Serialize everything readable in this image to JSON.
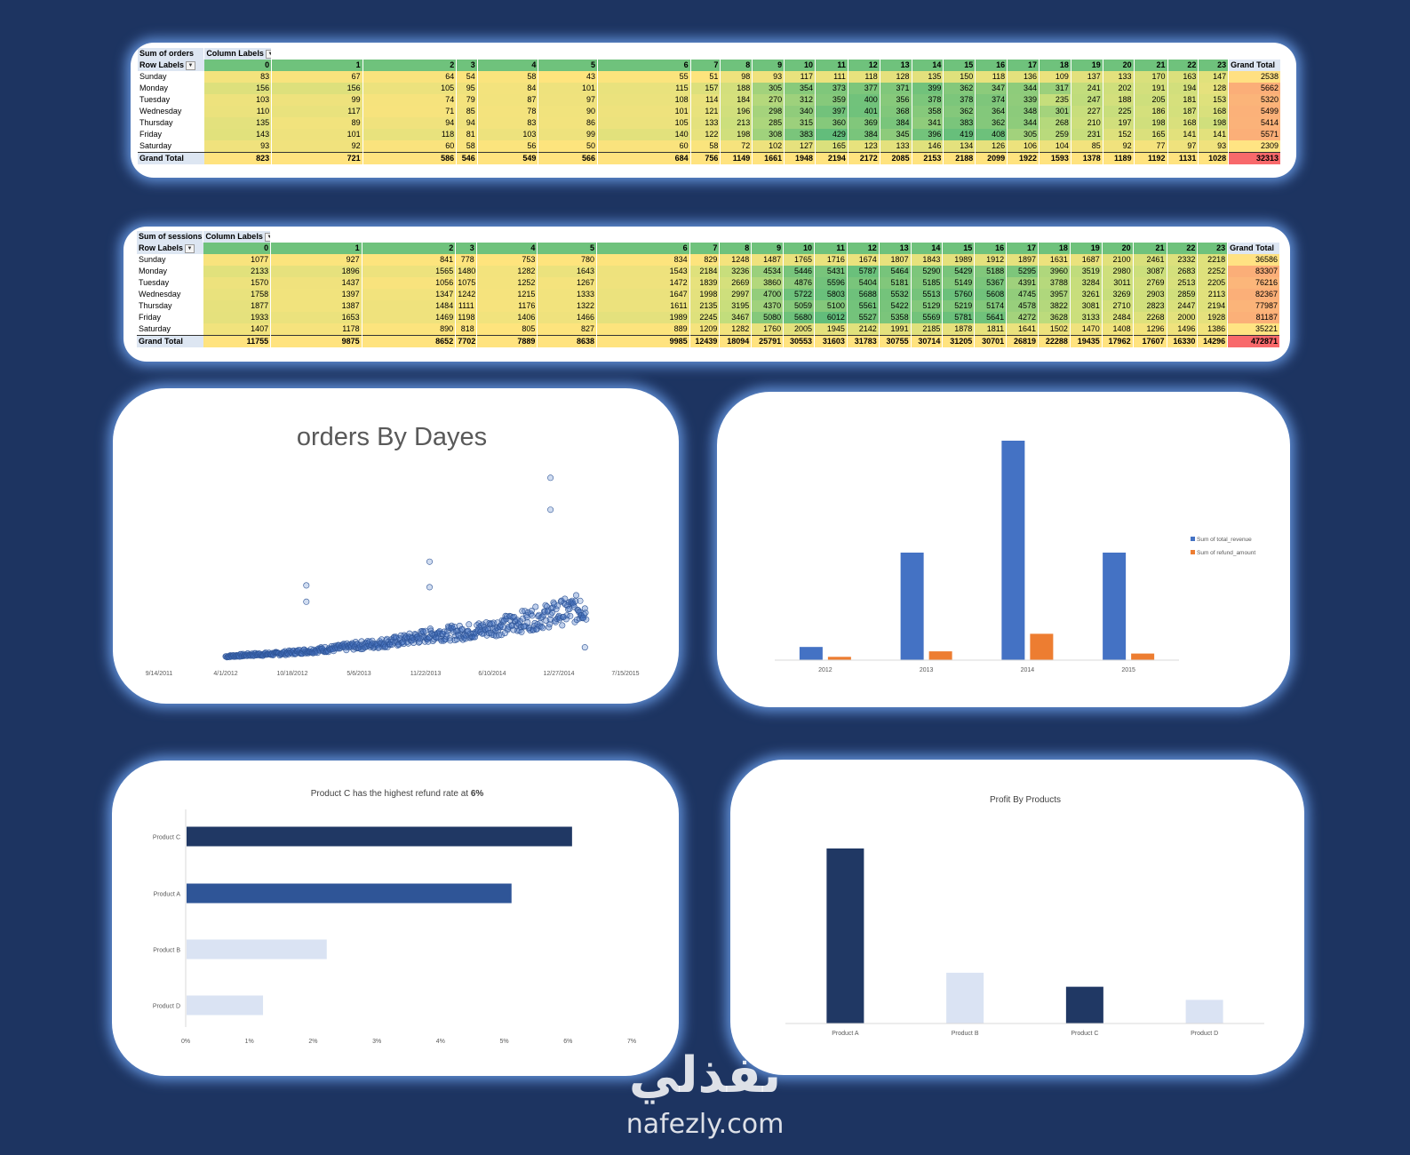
{
  "orders_pivot": {
    "measure_label": "Sum of orders",
    "column_labels_label": "Column Labels",
    "row_labels_label": "Row Labels",
    "columns": [
      "0",
      "1",
      "2",
      "3",
      "4",
      "5",
      "6",
      "7",
      "8",
      "9",
      "10",
      "11",
      "12",
      "13",
      "14",
      "15",
      "16",
      "17",
      "18",
      "19",
      "20",
      "21",
      "22",
      "23"
    ],
    "grand_total_label": "Grand Total",
    "rows": [
      {
        "label": "Sunday",
        "values": [
          83,
          67,
          64,
          54,
          58,
          43,
          55,
          51,
          98,
          93,
          117,
          111,
          118,
          128,
          135,
          150,
          118,
          136,
          109,
          137,
          133,
          170,
          163,
          147
        ],
        "total": 2538
      },
      {
        "label": "Monday",
        "values": [
          156,
          156,
          105,
          95,
          84,
          101,
          115,
          157,
          188,
          305,
          354,
          373,
          377,
          371,
          399,
          362,
          347,
          344,
          317,
          241,
          202,
          191,
          194,
          128
        ],
        "total": 5662
      },
      {
        "label": "Tuesday",
        "values": [
          103,
          99,
          74,
          79,
          87,
          97,
          108,
          114,
          184,
          270,
          312,
          359,
          400,
          356,
          378,
          378,
          374,
          339,
          235,
          247,
          188,
          205,
          181,
          153
        ],
        "total": 5320
      },
      {
        "label": "Wednesday",
        "values": [
          110,
          117,
          71,
          85,
          78,
          90,
          101,
          121,
          196,
          298,
          340,
          397,
          401,
          368,
          358,
          362,
          364,
          348,
          301,
          227,
          225,
          186,
          187,
          168
        ],
        "total": 5499
      },
      {
        "label": "Thursday",
        "values": [
          135,
          89,
          94,
          94,
          83,
          86,
          105,
          133,
          213,
          285,
          315,
          360,
          369,
          384,
          341,
          383,
          362,
          344,
          268,
          210,
          197,
          198,
          168,
          198
        ],
        "total": 5414
      },
      {
        "label": "Friday",
        "values": [
          143,
          101,
          118,
          81,
          103,
          99,
          140,
          122,
          198,
          308,
          383,
          429,
          384,
          345,
          396,
          419,
          408,
          305,
          259,
          231,
          152,
          165,
          141,
          141
        ],
        "total": 5571
      },
      {
        "label": "Saturday",
        "values": [
          93,
          92,
          60,
          58,
          56,
          50,
          60,
          58,
          72,
          102,
          127,
          165,
          123,
          133,
          146,
          134,
          126,
          106,
          104,
          85,
          92,
          77,
          97,
          93
        ],
        "total": 2309
      }
    ],
    "grand_total_row": {
      "label": "Grand Total",
      "values": [
        823,
        721,
        586,
        546,
        549,
        566,
        684,
        756,
        1149,
        1661,
        1948,
        2194,
        2172,
        2085,
        2153,
        2188,
        2099,
        1922,
        1593,
        1378,
        1189,
        1192,
        1131,
        1028
      ],
      "total": 32313
    }
  },
  "sessions_pivot": {
    "measure_label": "Sum of sessions",
    "column_labels_label": "Column Labels",
    "row_labels_label": "Row Labels",
    "columns": [
      "0",
      "1",
      "2",
      "3",
      "4",
      "5",
      "6",
      "7",
      "8",
      "9",
      "10",
      "11",
      "12",
      "13",
      "14",
      "15",
      "16",
      "17",
      "18",
      "19",
      "20",
      "21",
      "22",
      "23"
    ],
    "grand_total_label": "Grand Total",
    "rows": [
      {
        "label": "Sunday",
        "values": [
          1077,
          927,
          841,
          778,
          753,
          780,
          834,
          829,
          1248,
          1487,
          1765,
          1716,
          1674,
          1807,
          1843,
          1989,
          1912,
          1897,
          1631,
          1687,
          2100,
          2461,
          2332,
          2218
        ],
        "total": 36586
      },
      {
        "label": "Monday",
        "values": [
          2133,
          1896,
          1565,
          1480,
          1282,
          1643,
          1543,
          2184,
          3236,
          4534,
          5446,
          5431,
          5787,
          5464,
          5290,
          5429,
          5188,
          5295,
          3960,
          3519,
          2980,
          3087,
          2683,
          2252
        ],
        "total": 83307
      },
      {
        "label": "Tuesday",
        "values": [
          1570,
          1437,
          1056,
          1075,
          1252,
          1267,
          1472,
          1839,
          2669,
          3860,
          4876,
          5596,
          5404,
          5181,
          5185,
          5149,
          5367,
          4391,
          3788,
          3284,
          3011,
          2769,
          2513,
          2205
        ],
        "total": 76216
      },
      {
        "label": "Wednesday",
        "values": [
          1758,
          1397,
          1347,
          1242,
          1215,
          1333,
          1647,
          1998,
          2997,
          4700,
          5722,
          5803,
          5688,
          5532,
          5513,
          5760,
          5608,
          4745,
          3957,
          3261,
          3269,
          2903,
          2859,
          2113
        ],
        "total": 82367
      },
      {
        "label": "Thursday",
        "values": [
          1877,
          1387,
          1484,
          1111,
          1176,
          1322,
          1611,
          2135,
          3195,
          4370,
          5059,
          5100,
          5561,
          5422,
          5129,
          5219,
          5174,
          4578,
          3822,
          3081,
          2710,
          2823,
          2447,
          2194
        ],
        "total": 77987
      },
      {
        "label": "Friday",
        "values": [
          1933,
          1653,
          1469,
          1198,
          1406,
          1466,
          1989,
          2245,
          3467,
          5080,
          5680,
          6012,
          5527,
          5358,
          5569,
          5781,
          5641,
          4272,
          3628,
          3133,
          2484,
          2268,
          2000,
          1928
        ],
        "total": 81187
      },
      {
        "label": "Saturday",
        "values": [
          1407,
          1178,
          890,
          818,
          805,
          827,
          889,
          1209,
          1282,
          1760,
          2005,
          1945,
          2142,
          1991,
          2185,
          1878,
          1811,
          1641,
          1502,
          1470,
          1408,
          1296,
          1496,
          1386
        ],
        "total": 35221
      }
    ],
    "grand_total_row": {
      "label": "Grand Total",
      "values": [
        11755,
        9875,
        8652,
        7702,
        7889,
        8638,
        9985,
        12439,
        18094,
        25791,
        30553,
        31603,
        31783,
        30755,
        30714,
        31205,
        30701,
        26819,
        22288,
        19435,
        17962,
        17607,
        16330,
        14296
      ],
      "total": 472871
    }
  },
  "chart_data": [
    {
      "id": "orders_scatter",
      "type": "scatter",
      "title": "orders By Dayes",
      "xlabel": "",
      "ylabel": "",
      "x_tick_labels": [
        "9/14/2011",
        "4/1/2012",
        "10/18/2012",
        "5/6/2013",
        "11/22/2013",
        "6/10/2014",
        "12/27/2014",
        "7/15/2015"
      ],
      "xlim": [
        "2011-09-14",
        "2015-07-15"
      ],
      "ylim": [
        0,
        230
      ],
      "grid": false,
      "marker_color": "#4472c4",
      "series": [
        {
          "x": "2012-04-01",
          "y": 4
        },
        {
          "x": "2012-06-15",
          "y": 6
        },
        {
          "x": "2012-09-01",
          "y": 7
        },
        {
          "x": "2012-11-01",
          "y": 9
        },
        {
          "x": "2013-01-01",
          "y": 11
        },
        {
          "x": "2013-03-01",
          "y": 13
        },
        {
          "x": "2013-05-01",
          "y": 16
        },
        {
          "x": "2013-07-01",
          "y": 18
        },
        {
          "x": "2013-09-01",
          "y": 21
        },
        {
          "x": "2013-11-01",
          "y": 25
        },
        {
          "x": "2014-01-01",
          "y": 29
        },
        {
          "x": "2014-03-01",
          "y": 30
        },
        {
          "x": "2014-05-01",
          "y": 33
        },
        {
          "x": "2014-07-01",
          "y": 37
        },
        {
          "x": "2014-09-01",
          "y": 42
        },
        {
          "x": "2014-11-01",
          "y": 47
        },
        {
          "x": "2015-01-01",
          "y": 52
        },
        {
          "x": "2015-03-01",
          "y": 57
        },
        {
          "x": "2012-11-29",
          "y": 82
        },
        {
          "x": "2012-11-29",
          "y": 64
        },
        {
          "x": "2013-12-04",
          "y": 108
        },
        {
          "x": "2013-12-04",
          "y": 80
        },
        {
          "x": "2014-12-02",
          "y": 200
        },
        {
          "x": "2014-12-02",
          "y": 165
        },
        {
          "x": "2015-03-01",
          "y": 65
        },
        {
          "x": "2015-03-15",
          "y": 14
        }
      ]
    },
    {
      "id": "revenue_refund_by_year",
      "type": "bar",
      "title": "",
      "categories": [
        "2012",
        "2013",
        "2014",
        "2015"
      ],
      "series": [
        {
          "name": "Sum of total_revenue",
          "values": [
            6,
            49,
            100,
            49
          ],
          "color": "#4472c4"
        },
        {
          "name": "Sum of refund_amount",
          "values": [
            1.5,
            4,
            12,
            3
          ],
          "color": "#ed7d31"
        }
      ],
      "ylim": [
        0,
        100
      ],
      "legend": "right",
      "grid": false
    },
    {
      "id": "refund_rate_by_product",
      "type": "bar",
      "orientation": "horizontal",
      "title": "Product C has the highest refund rate at ",
      "title_emphasis": "6%",
      "categories": [
        "Product C",
        "Product A",
        "Product B",
        "Product D"
      ],
      "values": [
        6.05,
        5.1,
        2.2,
        1.2
      ],
      "colors": [
        "#203864",
        "#2f5597",
        "#dae3f3",
        "#dae3f3"
      ],
      "x_tick_labels": [
        "0%",
        "1%",
        "2%",
        "3%",
        "4%",
        "5%",
        "6%",
        "7%"
      ],
      "xlim": [
        0,
        7
      ],
      "grid": false
    },
    {
      "id": "profit_by_products",
      "type": "bar",
      "title": "Profit By Products",
      "categories": [
        "Product A",
        "Product B",
        "Product C",
        "Product D"
      ],
      "values": [
        100,
        29,
        21,
        13.5
      ],
      "colors": [
        "#203864",
        "#dae3f3",
        "#203864",
        "#dae3f3"
      ],
      "ylim": [
        0,
        100
      ],
      "grid": false
    }
  ],
  "watermark": {
    "logo_text": "نفذلي",
    "url": "nafezly.com"
  }
}
